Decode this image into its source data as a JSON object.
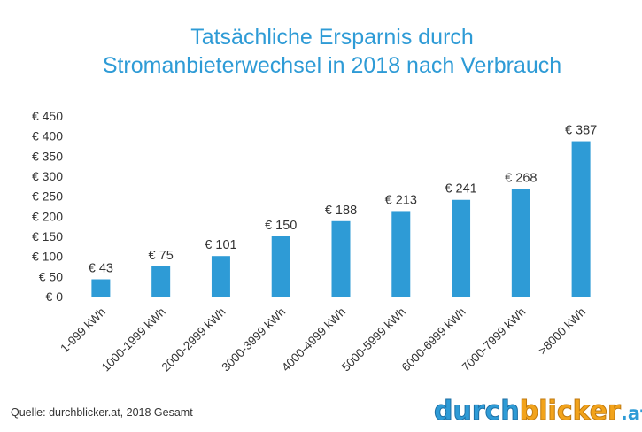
{
  "chart_data": {
    "type": "bar",
    "title_lines": [
      "Tatsächliche Ersparnis durch",
      "Stromanbieterwechsel in 2018 nach Verbrauch"
    ],
    "categories": [
      "1-999 kWh",
      "1000-1999 kWh",
      "2000-2999 kWh",
      "3000-3999 kWh",
      "4000-4999 kWh",
      "5000-5999 kWh",
      "6000-6999 kWh",
      "7000-7999 kWh",
      ">8000 kWh"
    ],
    "values": [
      43,
      75,
      101,
      150,
      188,
      213,
      241,
      268,
      387
    ],
    "data_labels": [
      "€ 43",
      "€ 75",
      "€ 101",
      "€ 150",
      "€ 188",
      "€ 213",
      "€ 241",
      "€ 268",
      "€ 387"
    ],
    "y_ticks": [
      0,
      50,
      100,
      150,
      200,
      250,
      300,
      350,
      400,
      450
    ],
    "y_tick_labels": [
      "€ 0",
      "€ 50",
      "€ 100",
      "€ 150",
      "€ 200",
      "€ 250",
      "€ 300",
      "€ 350",
      "€ 400",
      "€ 450"
    ],
    "ylim": [
      0,
      450
    ],
    "xlabel": "",
    "ylabel": "",
    "grid": false,
    "legend": "none",
    "bar_color": "#2e9bd6"
  },
  "footer": {
    "source": "Quelle: durchblicker.at, 2018 Gesamt"
  },
  "logo": {
    "part1": "durch",
    "part2": "blicker",
    "suffix": ".at",
    "primary_color": "#2e9bd6",
    "accent_color": "#f2a31b"
  }
}
